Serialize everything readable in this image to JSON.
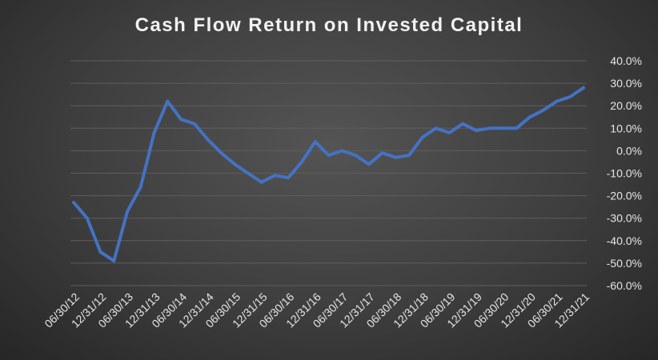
{
  "chart_data": {
    "type": "line",
    "title": "Cash Flow Return on Invested Capital",
    "xlabel": "",
    "ylabel": "",
    "ylim": [
      -0.6,
      0.4
    ],
    "ytick_labels": [
      "40.0%",
      "30.0%",
      "20.0%",
      "10.0%",
      "0.0%",
      "-10.0%",
      "-20.0%",
      "-30.0%",
      "-40.0%",
      "-50.0%",
      "-60.0%"
    ],
    "ytick_values": [
      0.4,
      0.3,
      0.2,
      0.1,
      0.0,
      -0.1,
      -0.2,
      -0.3,
      -0.4,
      -0.5,
      -0.6
    ],
    "xtick_labels": [
      "06/30/12",
      "12/31/12",
      "06/30/13",
      "12/31/13",
      "06/30/14",
      "12/31/14",
      "06/30/15",
      "12/31/15",
      "06/30/16",
      "12/31/16",
      "06/30/17",
      "12/31/17",
      "06/30/18",
      "12/31/18",
      "06/30/19",
      "12/31/19",
      "06/30/20",
      "12/31/20",
      "06/30/21",
      "12/31/21"
    ],
    "grid": true,
    "line_color": "#4472c4",
    "x": [
      "06/30/12",
      "09/30/12",
      "12/31/12",
      "03/31/13",
      "06/30/13",
      "09/30/13",
      "12/31/13",
      "03/31/14",
      "06/30/14",
      "09/30/14",
      "12/31/14",
      "03/31/15",
      "06/30/15",
      "09/30/15",
      "12/31/15",
      "03/31/16",
      "06/30/16",
      "09/30/16",
      "12/31/16",
      "03/31/17",
      "06/30/17",
      "09/30/17",
      "12/31/17",
      "03/31/18",
      "06/30/18",
      "09/30/18",
      "12/31/18",
      "03/31/19",
      "06/30/19",
      "09/30/19",
      "12/31/19",
      "03/31/20",
      "06/30/20",
      "09/30/20",
      "12/31/20",
      "03/31/21",
      "06/30/21",
      "09/30/21",
      "12/31/21"
    ],
    "series": [
      {
        "values": [
          -0.23,
          -0.3,
          -0.45,
          -0.49,
          -0.27,
          -0.16,
          0.08,
          0.22,
          0.14,
          0.12,
          0.05,
          -0.01,
          -0.06,
          -0.1,
          -0.14,
          -0.11,
          -0.12,
          -0.05,
          0.04,
          -0.02,
          0.0,
          -0.02,
          -0.06,
          -0.01,
          -0.03,
          -0.02,
          0.06,
          0.1,
          0.08,
          0.12,
          0.09,
          0.1,
          0.1,
          0.1,
          0.15,
          0.18,
          0.22,
          0.24,
          0.28
        ]
      }
    ]
  }
}
